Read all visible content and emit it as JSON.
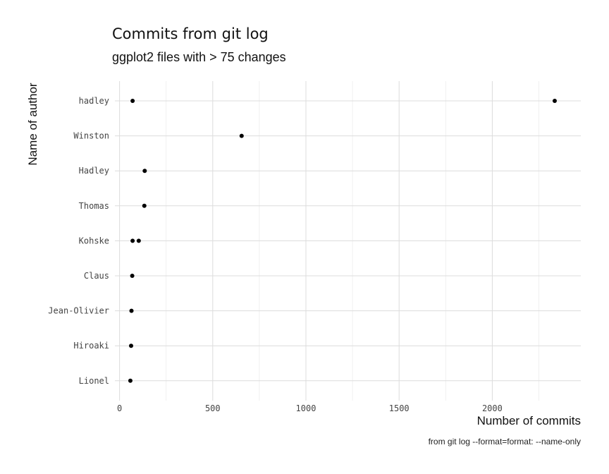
{
  "chart_data": {
    "type": "scatter",
    "title": "Commits from git log",
    "subtitle": "ggplot2 files with > 75 changes",
    "xlabel": "Number of commits",
    "ylabel": "Name of author",
    "caption": "from git log --format=format: --name-only",
    "xlim": [
      -25,
      2475
    ],
    "xticks": [
      0,
      500,
      1000,
      1500,
      2000
    ],
    "categories": [
      "hadley",
      "Winston",
      "Hadley",
      "Thomas",
      "Kohske",
      "Claus",
      "Jean-Olivier",
      "Hiroaki",
      "Lionel"
    ],
    "points": [
      {
        "author": "hadley",
        "commits": 70
      },
      {
        "author": "hadley",
        "commits": 2335
      },
      {
        "author": "Winston",
        "commits": 655
      },
      {
        "author": "Hadley",
        "commits": 135
      },
      {
        "author": "Thomas",
        "commits": 133
      },
      {
        "author": "Kohske",
        "commits": 70
      },
      {
        "author": "Kohske",
        "commits": 103
      },
      {
        "author": "Claus",
        "commits": 68
      },
      {
        "author": "Jean-Olivier",
        "commits": 64
      },
      {
        "author": "Hiroaki",
        "commits": 62
      },
      {
        "author": "Lionel",
        "commits": 58
      }
    ],
    "grid": true,
    "legend": "none"
  }
}
